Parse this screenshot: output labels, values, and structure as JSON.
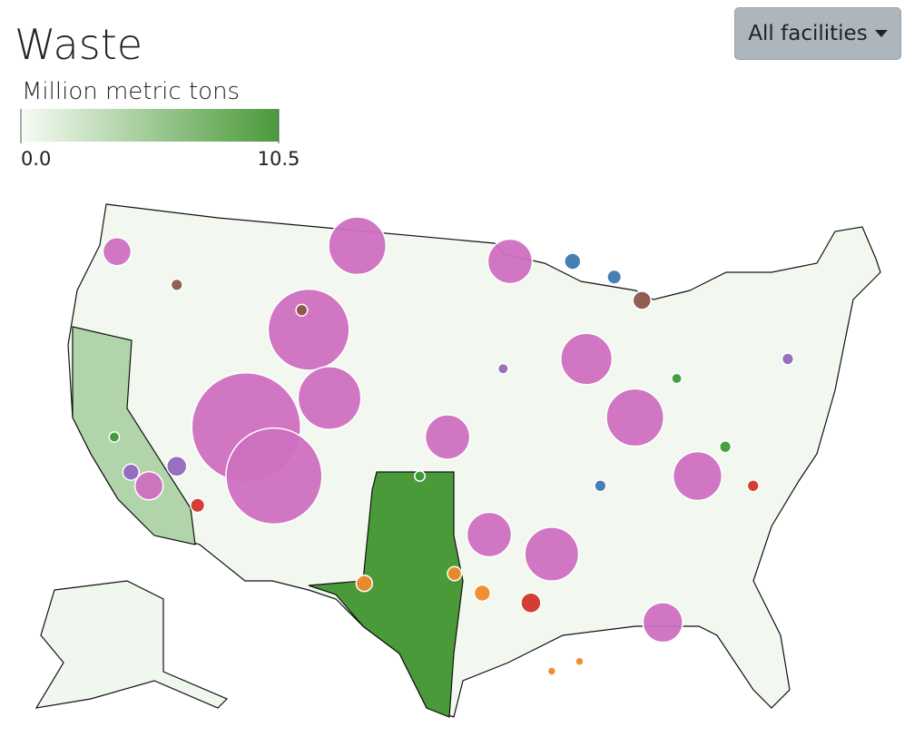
{
  "header": {
    "title": "Waste",
    "dropdown": "All facilities"
  },
  "legend": {
    "title": "Million metric tons",
    "range": [
      0,
      10.5
    ],
    "ticks": [
      {
        "value": 0,
        "label": "0.0"
      },
      10.5
    ],
    "colors": [
      "#f7fbf5",
      "#4a9a3a"
    ]
  },
  "regions": [
    {
      "value": 0.3
    },
    {
      "value": 10.5
    },
    {
      "value": 4.2
    },
    {
      "value": 0.4
    }
  ],
  "facilities": [
    {
      "lon": -112.5,
      "lat": 38.5,
      "value": 9,
      "color": "#cf6fc0"
    },
    {
      "lon": -110.5,
      "lat": 36.0,
      "value": 7,
      "color": "#cf6fc0"
    },
    {
      "lon": -108.0,
      "lat": 43.5,
      "value": 5,
      "color": "#cf6fc0"
    },
    {
      "lon": -104.5,
      "lat": 47.8,
      "value": 2.5,
      "color": "#cf6fc0"
    },
    {
      "lon": -106.5,
      "lat": 40.0,
      "value": 3,
      "color": "#cf6fc0"
    },
    {
      "lon": -93.5,
      "lat": 47.0,
      "value": 1.5,
      "color": "#cf6fc0"
    },
    {
      "lon": -88.0,
      "lat": 42.0,
      "value": 2,
      "color": "#cf6fc0"
    },
    {
      "lon": -84.5,
      "lat": 39.0,
      "value": 2.5,
      "color": "#cf6fc0"
    },
    {
      "lon": -80.0,
      "lat": 36.0,
      "value": 1.8,
      "color": "#cf6fc0"
    },
    {
      "lon": -82.5,
      "lat": 28.5,
      "value": 1.2,
      "color": "#cf6fc0"
    },
    {
      "lon": -95.0,
      "lat": 33.0,
      "value": 1.5,
      "color": "#cf6fc0"
    },
    {
      "lon": -90.5,
      "lat": 32.0,
      "value": 2.2,
      "color": "#cf6fc0"
    },
    {
      "lon": -98.0,
      "lat": 38.0,
      "value": 1.5,
      "color": "#cf6fc0"
    },
    {
      "lon": -121.8,
      "lat": 47.5,
      "value": 0.6,
      "color": "#cf6fc0"
    },
    {
      "lon": -119.5,
      "lat": 35.5,
      "value": 0.6,
      "color": "#cf6fc0"
    },
    {
      "lon": -117.5,
      "lat": 36.5,
      "value": 0.3,
      "color": "#9467bd"
    },
    {
      "lon": -104.0,
      "lat": 30.5,
      "value": 0.2,
      "color": "#ee8a2c"
    },
    {
      "lon": -97.5,
      "lat": 31.0,
      "value": 0.15,
      "color": "#ee8a2c"
    },
    {
      "lon": -95.5,
      "lat": 30.0,
      "value": 0.2,
      "color": "#ee8a2c"
    },
    {
      "lon": -92.0,
      "lat": 29.5,
      "value": 0.3,
      "color": "#d2332b"
    },
    {
      "lon": -88.5,
      "lat": 26.5,
      "value": 0.05,
      "color": "#ee8a2c"
    },
    {
      "lon": -90.5,
      "lat": 26.0,
      "value": 0.05,
      "color": "#ee8a2c"
    },
    {
      "lon": -86.0,
      "lat": 46.2,
      "value": 0.15,
      "color": "#3b78b0"
    },
    {
      "lon": -89.0,
      "lat": 47.0,
      "value": 0.2,
      "color": "#3b78b0"
    },
    {
      "lon": -84.0,
      "lat": 45.0,
      "value": 0.25,
      "color": "#8c564b"
    },
    {
      "lon": -117.5,
      "lat": 45.8,
      "value": 0.1,
      "color": "#8c564b"
    },
    {
      "lon": -116.0,
      "lat": 34.5,
      "value": 0.15,
      "color": "#d2332b"
    },
    {
      "lon": -108.5,
      "lat": 44.5,
      "value": 0.1,
      "color": "#8c564b"
    },
    {
      "lon": -100.0,
      "lat": 36.0,
      "value": 0.08,
      "color": "#3d9a3a"
    },
    {
      "lon": -78.0,
      "lat": 37.5,
      "value": 0.1,
      "color": "#3d9a3a"
    },
    {
      "lon": -76.0,
      "lat": 35.5,
      "value": 0.1,
      "color": "#d2332b"
    },
    {
      "lon": -73.5,
      "lat": 42.0,
      "value": 0.1,
      "color": "#9467bd"
    },
    {
      "lon": -87.0,
      "lat": 35.5,
      "value": 0.1,
      "color": "#3b78b0"
    },
    {
      "lon": -94.0,
      "lat": 41.5,
      "value": 0.08,
      "color": "#9467bd"
    },
    {
      "lon": -81.5,
      "lat": 41.0,
      "value": 0.08,
      "color": "#3d9a3a"
    },
    {
      "lon": -122.0,
      "lat": 38.0,
      "value": 0.08,
      "color": "#3d9a3a"
    },
    {
      "lon": -120.8,
      "lat": 36.2,
      "value": 0.2,
      "color": "#9467bd"
    }
  ]
}
